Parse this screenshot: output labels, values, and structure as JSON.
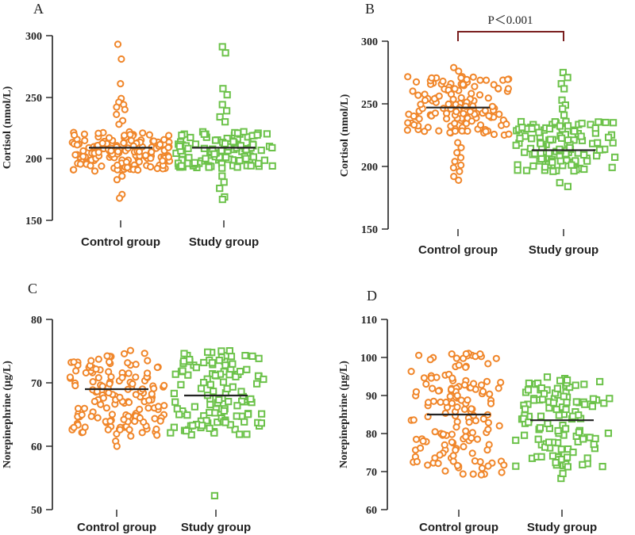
{
  "colors": {
    "control": "#f0862a",
    "study": "#6cc24a",
    "mean_line": "#222222",
    "axis": "#222222",
    "bracket": "#7a1f1f"
  },
  "chart_data": [
    {
      "panel": "A",
      "type": "scatter",
      "ylabel": "Cortisol (nmol/L)",
      "ylim": [
        150,
        300
      ],
      "yticks": [
        150,
        200,
        250,
        300
      ],
      "categories": [
        "Control group",
        "Study group"
      ],
      "series": [
        {
          "name": "Control group",
          "marker": "circle",
          "mean": 209,
          "n": 150,
          "seed": 11,
          "core": [
            190,
            222
          ],
          "extra": [
            293,
            281,
            261,
            249,
            246,
            244,
            242,
            240,
            236,
            231,
            228,
            186,
            183,
            171,
            168
          ]
        },
        {
          "name": "Study group",
          "marker": "square",
          "mean": 209,
          "n": 110,
          "seed": 23,
          "core": [
            192,
            222
          ],
          "extra": [
            291,
            286,
            257,
            252,
            244,
            239,
            234,
            230,
            186,
            181,
            176,
            169,
            167
          ]
        }
      ],
      "significance": null
    },
    {
      "panel": "B",
      "type": "scatter",
      "ylabel": "Cortisol (nmol/L)",
      "ylim": [
        150,
        300
      ],
      "yticks": [
        150,
        200,
        250,
        300
      ],
      "categories": [
        "Control group",
        "Study group"
      ],
      "series": [
        {
          "name": "Control group",
          "marker": "circle",
          "mean": 247,
          "n": 140,
          "seed": 37,
          "core": [
            225,
            272
          ],
          "extra": [
            279,
            276,
            219,
            215,
            211,
            207,
            204,
            201,
            199,
            196,
            192,
            189
          ]
        },
        {
          "name": "Study group",
          "marker": "square",
          "mean": 213,
          "n": 120,
          "seed": 41,
          "core": [
            196,
            236
          ],
          "extra": [
            275,
            271,
            266,
            262,
            253,
            249,
            246,
            241,
            187,
            184
          ]
        }
      ],
      "significance": {
        "label": "P＜0.001"
      }
    },
    {
      "panel": "C",
      "type": "scatter",
      "ylabel": "Norepinephrine (µg/L)",
      "ylim": [
        50,
        80
      ],
      "yticks": [
        50,
        60,
        70,
        80
      ],
      "categories": [
        "Control group",
        "Study group"
      ],
      "series": [
        {
          "name": "Control group",
          "marker": "circle",
          "mean": 69,
          "n": 150,
          "seed": 53,
          "core": [
            61.5,
            75.2
          ],
          "extra": [
            60.8,
            60.0
          ]
        },
        {
          "name": "Study group",
          "marker": "square",
          "mean": 68,
          "n": 120,
          "seed": 67,
          "core": [
            61.8,
            75.2
          ],
          "extra": [
            52.2
          ]
        }
      ],
      "significance": null
    },
    {
      "panel": "D",
      "type": "scatter",
      "ylabel": "Norepinephrine (µg/L)",
      "ylim": [
        60,
        110
      ],
      "yticks": [
        60,
        70,
        80,
        90,
        100,
        110
      ],
      "categories": [
        "Control group",
        "Study group"
      ],
      "series": [
        {
          "name": "Control group",
          "marker": "circle",
          "mean": 85,
          "n": 150,
          "seed": 71,
          "core": [
            69,
            101.5
          ],
          "extra": []
        },
        {
          "name": "Study group",
          "marker": "square",
          "mean": 83.5,
          "n": 120,
          "seed": 83,
          "core": [
            71,
            95.5
          ],
          "extra": [
            68.2,
            69.5
          ]
        }
      ],
      "significance": null
    }
  ]
}
